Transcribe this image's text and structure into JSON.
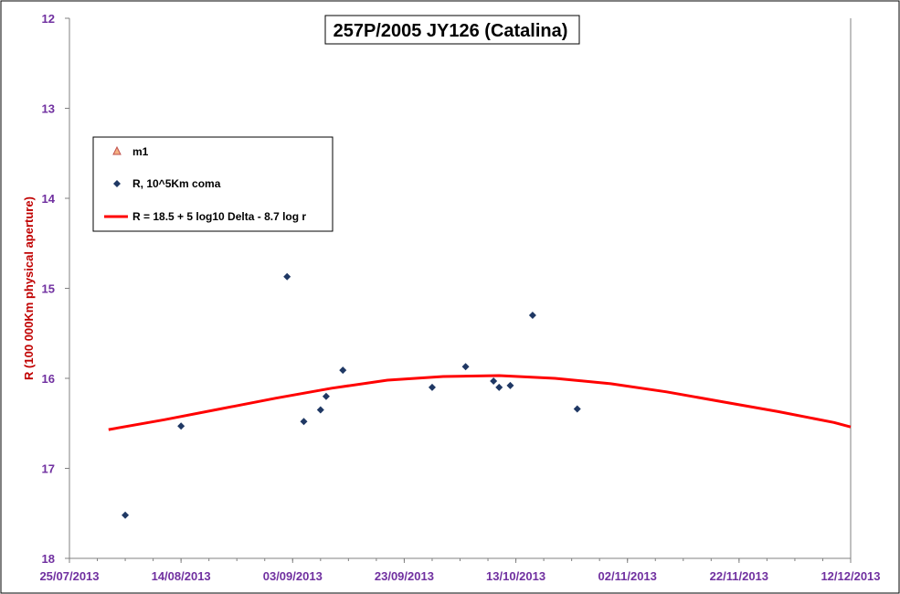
{
  "chart_data": {
    "type": "scatter",
    "title": "257P/2005 JY126 (Catalina)",
    "ylabel": "R (100 000Km physical  aperture)",
    "xlabel": "",
    "ylim": [
      12,
      18
    ],
    "y_inverted": true,
    "yticks": [
      "12",
      "13",
      "14",
      "15",
      "16",
      "17",
      "18"
    ],
    "xlim": [
      "2013-07-25",
      "2013-12-12"
    ],
    "xticks": [
      "25/07/2013",
      "14/08/2013",
      "03/09/2013",
      "23/09/2013",
      "13/10/2013",
      "02/11/2013",
      "22/11/2013",
      "12/12/2013"
    ],
    "grid": false,
    "legend_position": "top-left",
    "series": [
      {
        "name": "m1",
        "marker": "triangle",
        "color": "#f4b183",
        "x": [],
        "y": []
      },
      {
        "name": "R, 10^5Km coma",
        "marker": "diamond",
        "color": "#1f3864",
        "x": [
          "2013-08-04",
          "2013-08-14",
          "2013-09-02",
          "2013-09-05",
          "2013-09-08",
          "2013-09-09",
          "2013-09-12",
          "2013-09-28",
          "2013-10-04",
          "2013-10-09",
          "2013-10-10",
          "2013-10-12",
          "2013-10-16",
          "2013-10-24"
        ],
        "y": [
          17.52,
          16.53,
          14.87,
          16.48,
          16.35,
          16.2,
          15.91,
          16.1,
          15.87,
          16.03,
          16.1,
          16.08,
          15.3,
          16.34
        ]
      },
      {
        "name": "R = 18.5 + 5 log10 Delta - 8.7  log r",
        "type": "line",
        "color": "#ff0000",
        "x": [
          "2013-08-01",
          "2013-08-11",
          "2013-08-21",
          "2013-08-31",
          "2013-09-10",
          "2013-09-20",
          "2013-09-30",
          "2013-10-10",
          "2013-10-20",
          "2013-10-30",
          "2013-11-09",
          "2013-11-19",
          "2013-11-29",
          "2013-12-09",
          "2013-12-12"
        ],
        "y": [
          16.57,
          16.46,
          16.34,
          16.22,
          16.11,
          16.02,
          15.98,
          15.97,
          16.0,
          16.06,
          16.15,
          16.26,
          16.37,
          16.49,
          16.54
        ]
      }
    ]
  }
}
